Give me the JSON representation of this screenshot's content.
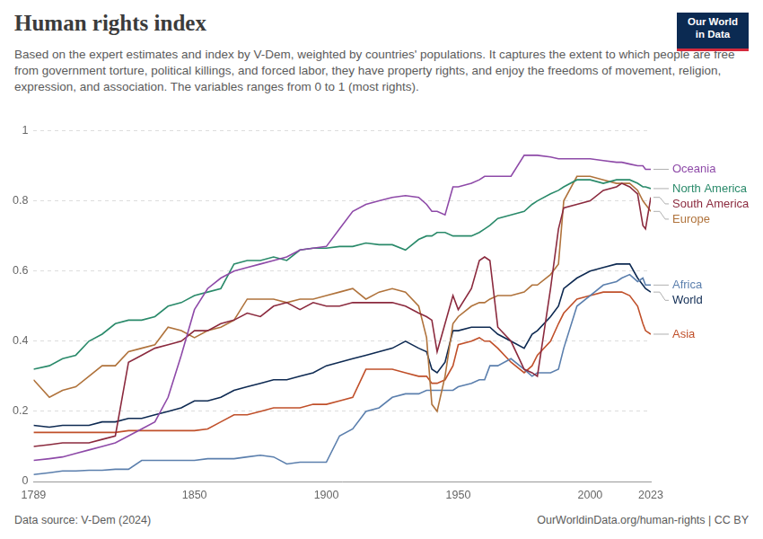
{
  "chart_data": {
    "type": "line",
    "title": "Human rights index",
    "subtitle": "Based on the expert estimates and index by V-Dem, weighted by countries' populations. It captures the extent to which people are free from government torture, political killings, and forced labor, they have property rights, and enjoy the freedoms of movement, religion, expression, and association. The variables ranges from 0 to 1 (most rights).",
    "logo": "Our World in Data",
    "source": "Data source: V-Dem (2024)",
    "url": "OurWorldinData.org/human-rights | CC BY",
    "x": [
      1789,
      1795,
      1800,
      1805,
      1810,
      1815,
      1820,
      1825,
      1830,
      1835,
      1840,
      1845,
      1850,
      1855,
      1860,
      1865,
      1870,
      1875,
      1880,
      1885,
      1890,
      1895,
      1900,
      1905,
      1910,
      1915,
      1920,
      1925,
      1930,
      1935,
      1938,
      1940,
      1942,
      1945,
      1948,
      1950,
      1955,
      1958,
      1960,
      1962,
      1965,
      1970,
      1975,
      1978,
      1980,
      1985,
      1988,
      1990,
      1995,
      2000,
      2005,
      2010,
      2012,
      2015,
      2018,
      2020,
      2021,
      2023
    ],
    "xlim": [
      1789,
      2023
    ],
    "xticks": [
      1789,
      1850,
      1900,
      1950,
      2000,
      2023
    ],
    "ylim": [
      0,
      1
    ],
    "yticks": [
      0,
      0.2,
      0.4,
      0.6,
      0.8,
      1
    ],
    "grid": true,
    "series": [
      {
        "name": "Oceania",
        "color": "#8e4aa8",
        "values": [
          0.06,
          0.065,
          0.07,
          0.08,
          0.09,
          0.1,
          0.11,
          0.13,
          0.15,
          0.17,
          0.24,
          0.36,
          0.49,
          0.55,
          0.58,
          0.6,
          0.61,
          0.62,
          0.63,
          0.64,
          0.66,
          0.665,
          0.67,
          0.72,
          0.77,
          0.79,
          0.8,
          0.81,
          0.815,
          0.81,
          0.79,
          0.77,
          0.77,
          0.76,
          0.84,
          0.84,
          0.85,
          0.86,
          0.87,
          0.87,
          0.87,
          0.87,
          0.93,
          0.93,
          0.93,
          0.925,
          0.92,
          0.92,
          0.92,
          0.92,
          0.915,
          0.91,
          0.91,
          0.905,
          0.9,
          0.9,
          0.89,
          0.89
        ]
      },
      {
        "name": "North America",
        "color": "#2a8a6a",
        "values": [
          0.32,
          0.33,
          0.35,
          0.36,
          0.4,
          0.42,
          0.45,
          0.46,
          0.46,
          0.47,
          0.5,
          0.51,
          0.53,
          0.54,
          0.55,
          0.62,
          0.63,
          0.63,
          0.64,
          0.63,
          0.66,
          0.665,
          0.665,
          0.67,
          0.67,
          0.68,
          0.675,
          0.675,
          0.66,
          0.69,
          0.7,
          0.7,
          0.71,
          0.71,
          0.7,
          0.7,
          0.7,
          0.71,
          0.72,
          0.73,
          0.75,
          0.76,
          0.77,
          0.79,
          0.8,
          0.82,
          0.83,
          0.84,
          0.86,
          0.86,
          0.85,
          0.86,
          0.86,
          0.86,
          0.85,
          0.84,
          0.84,
          0.835
        ]
      },
      {
        "name": "South America",
        "color": "#8b2a3e",
        "values": [
          0.1,
          0.105,
          0.11,
          0.11,
          0.11,
          0.12,
          0.13,
          0.34,
          0.36,
          0.38,
          0.39,
          0.4,
          0.43,
          0.43,
          0.45,
          0.46,
          0.48,
          0.47,
          0.5,
          0.51,
          0.49,
          0.51,
          0.5,
          0.5,
          0.51,
          0.51,
          0.51,
          0.51,
          0.5,
          0.48,
          0.47,
          0.46,
          0.37,
          0.45,
          0.53,
          0.49,
          0.55,
          0.63,
          0.64,
          0.63,
          0.44,
          0.4,
          0.32,
          0.31,
          0.3,
          0.55,
          0.72,
          0.78,
          0.79,
          0.8,
          0.83,
          0.84,
          0.85,
          0.84,
          0.82,
          0.73,
          0.72,
          0.81
        ]
      },
      {
        "name": "Europe",
        "color": "#b0733c",
        "values": [
          0.29,
          0.24,
          0.26,
          0.27,
          0.3,
          0.33,
          0.33,
          0.37,
          0.38,
          0.39,
          0.44,
          0.43,
          0.41,
          0.43,
          0.44,
          0.46,
          0.52,
          0.52,
          0.52,
          0.51,
          0.52,
          0.52,
          0.53,
          0.54,
          0.55,
          0.52,
          0.54,
          0.55,
          0.54,
          0.5,
          0.41,
          0.22,
          0.2,
          0.3,
          0.45,
          0.47,
          0.5,
          0.51,
          0.51,
          0.52,
          0.53,
          0.53,
          0.54,
          0.56,
          0.56,
          0.59,
          0.62,
          0.8,
          0.87,
          0.87,
          0.86,
          0.85,
          0.85,
          0.85,
          0.83,
          0.8,
          0.79,
          0.77
        ]
      },
      {
        "name": "Africa",
        "color": "#5b7fad",
        "values": [
          0.02,
          0.025,
          0.03,
          0.03,
          0.032,
          0.032,
          0.035,
          0.035,
          0.06,
          0.06,
          0.06,
          0.06,
          0.06,
          0.065,
          0.065,
          0.065,
          0.07,
          0.075,
          0.07,
          0.05,
          0.055,
          0.055,
          0.055,
          0.13,
          0.15,
          0.2,
          0.21,
          0.24,
          0.25,
          0.25,
          0.26,
          0.26,
          0.26,
          0.26,
          0.26,
          0.27,
          0.28,
          0.29,
          0.29,
          0.33,
          0.33,
          0.35,
          0.32,
          0.3,
          0.31,
          0.31,
          0.32,
          0.38,
          0.5,
          0.53,
          0.56,
          0.57,
          0.58,
          0.59,
          0.57,
          0.58,
          0.56,
          0.56
        ]
      },
      {
        "name": "World",
        "color": "#0e2a52",
        "values": [
          0.16,
          0.155,
          0.16,
          0.16,
          0.16,
          0.17,
          0.17,
          0.18,
          0.18,
          0.19,
          0.2,
          0.21,
          0.23,
          0.23,
          0.24,
          0.26,
          0.27,
          0.28,
          0.29,
          0.29,
          0.3,
          0.31,
          0.33,
          0.34,
          0.35,
          0.36,
          0.37,
          0.38,
          0.4,
          0.38,
          0.37,
          0.32,
          0.31,
          0.34,
          0.43,
          0.43,
          0.44,
          0.44,
          0.44,
          0.44,
          0.42,
          0.4,
          0.38,
          0.42,
          0.43,
          0.47,
          0.5,
          0.55,
          0.58,
          0.6,
          0.61,
          0.62,
          0.62,
          0.62,
          0.58,
          0.56,
          0.55,
          0.54
        ]
      },
      {
        "name": "Asia",
        "color": "#c0502a",
        "values": [
          0.14,
          0.14,
          0.14,
          0.14,
          0.14,
          0.14,
          0.14,
          0.145,
          0.145,
          0.145,
          0.145,
          0.145,
          0.145,
          0.15,
          0.17,
          0.19,
          0.19,
          0.2,
          0.21,
          0.21,
          0.21,
          0.22,
          0.22,
          0.23,
          0.24,
          0.32,
          0.32,
          0.32,
          0.31,
          0.3,
          0.3,
          0.28,
          0.28,
          0.29,
          0.33,
          0.39,
          0.4,
          0.41,
          0.4,
          0.4,
          0.38,
          0.34,
          0.31,
          0.33,
          0.36,
          0.4,
          0.45,
          0.48,
          0.52,
          0.53,
          0.54,
          0.54,
          0.54,
          0.53,
          0.5,
          0.45,
          0.43,
          0.42
        ]
      }
    ]
  }
}
